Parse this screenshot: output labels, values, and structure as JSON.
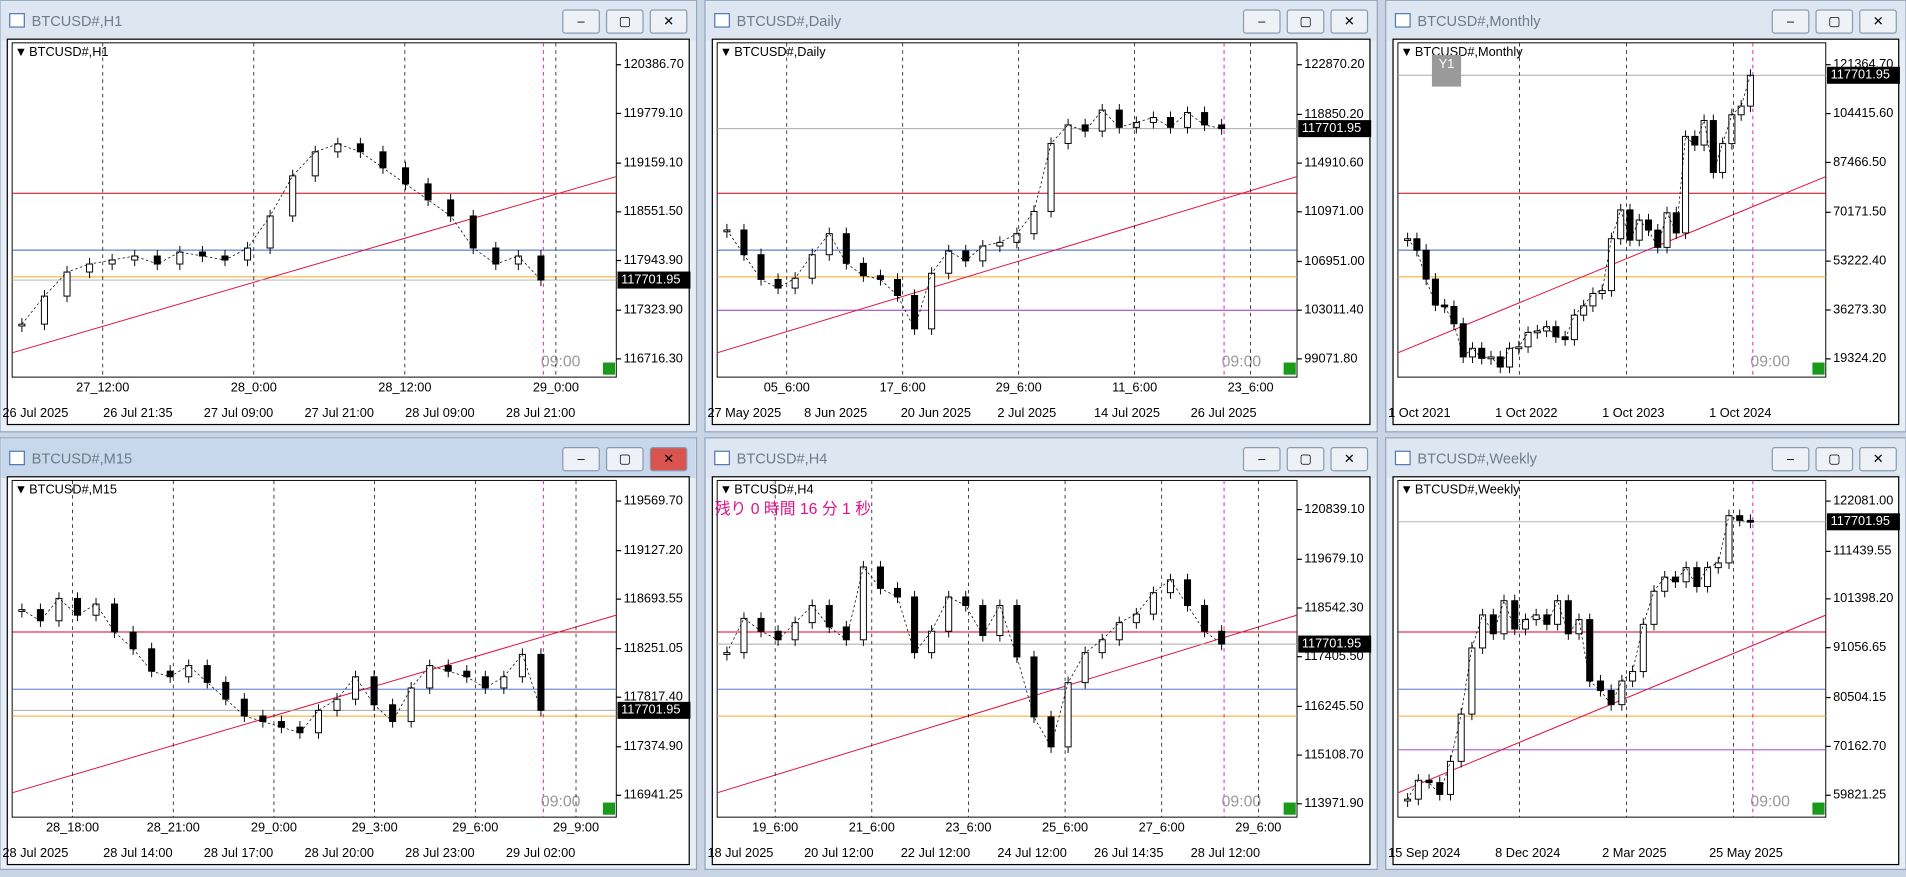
{
  "bid": "117701.95",
  "countdown": "残り 0 時間 16 分 1 秒",
  "session_label": "09:00",
  "period_button": "Y1",
  "windows": [
    {
      "title": "BTCUSD#,H1",
      "label": "BTCUSD#,H1",
      "ylim": [
        116489,
        120660
      ],
      "yticks": [
        {
          "value": 120386.7,
          "label": "120386.70"
        },
        {
          "value": 119779.1,
          "label": "119779.10"
        },
        {
          "value": 119159.1,
          "label": "119159.10"
        },
        {
          "value": 118551.5,
          "label": "118551.50"
        },
        {
          "value": 117943.9,
          "label": "117943.90"
        },
        {
          "value": 117323.9,
          "label": "117323.90"
        },
        {
          "value": 116716.3,
          "label": "116716.30"
        }
      ],
      "time_top": [
        "27_12:00",
        "28_0:00",
        "28_12:00",
        "29_0:00"
      ],
      "time_bottom": [
        "26 Jul 2025",
        "26 Jul 21:35",
        "27 Jul 09:00",
        "27 Jul 21:00",
        "28 Jul 09:00",
        "28 Jul 21:00"
      ],
      "close": [
        117150,
        117500,
        117800,
        117900,
        117950,
        118000,
        117900,
        118050,
        118000,
        117950,
        118100,
        118500,
        119000,
        119300,
        119400,
        119300,
        119100,
        118900,
        118700,
        118500,
        118100,
        117900,
        118000,
        117700
      ]
    },
    {
      "title": "BTCUSD#,Daily",
      "label": "BTCUSD#,Daily",
      "ylim": [
        97597,
        124640
      ],
      "yticks": [
        {
          "value": 122870.2,
          "label": "122870.20"
        },
        {
          "value": 118850.2,
          "label": "118850.20"
        },
        {
          "value": 114910.6,
          "label": "114910.60"
        },
        {
          "value": 110971,
          "label": "110971.00"
        },
        {
          "value": 106951,
          "label": "106951.00"
        },
        {
          "value": 103011.4,
          "label": "103011.40"
        },
        {
          "value": 99071.8,
          "label": "99071.80"
        }
      ],
      "time_top": [
        "05_6:00",
        "17_6:00",
        "29_6:00",
        "11_6:00",
        "23_6:00"
      ],
      "time_bottom": [
        "27 May 2025",
        "8 Jun 2025",
        "20 Jun 2025",
        "2 Jul 2025",
        "14 Jul 2025",
        "26 Jul 2025"
      ],
      "close": [
        109500,
        107500,
        105500,
        104800,
        105600,
        107500,
        109200,
        106800,
        105800,
        105500,
        104200,
        101500,
        106000,
        107800,
        107000,
        108200,
        108500,
        109200,
        111000,
        116500,
        118000,
        117500,
        119200,
        117800,
        118200,
        118600,
        117800,
        119000,
        118000,
        117700
      ]
    },
    {
      "title": "BTCUSD#,Monthly",
      "label": "BTCUSD#,Monthly",
      "ylim": [
        12999,
        128955
      ],
      "yticks": [
        {
          "value": 121364.7,
          "label": "121364.70"
        },
        {
          "value": 104415.6,
          "label": "104415.60"
        },
        {
          "value": 87466.5,
          "label": "87466.50"
        },
        {
          "value": 70171.5,
          "label": "70171.50"
        },
        {
          "value": 53222.4,
          "label": "53222.40"
        },
        {
          "value": 36273.3,
          "label": "36273.30"
        },
        {
          "value": 19324.2,
          "label": "19324.20"
        }
      ],
      "time_top": [],
      "time_bottom": [
        "1 Oct 2021",
        "1 Oct 2022",
        "1 Oct 2023",
        "1 Oct 2024"
      ],
      "close": [
        61000,
        57000,
        47000,
        38000,
        37500,
        31500,
        20000,
        23000,
        19500,
        20000,
        16500,
        23000,
        23500,
        28500,
        29000,
        30500,
        27000,
        26000,
        34500,
        37700,
        42000,
        43000,
        61000,
        71000,
        60500,
        67500,
        64000,
        58000,
        70000,
        63000,
        96500,
        93500,
        102000,
        84000,
        94000,
        104000,
        107000,
        117700
      ]
    },
    {
      "title": "BTCUSD#,M15",
      "label": "BTCUSD#,M15",
      "ylim": [
        116746,
        119754
      ],
      "yticks": [
        {
          "value": 119569.7,
          "label": "119569.70"
        },
        {
          "value": 119127.2,
          "label": "119127.20"
        },
        {
          "value": 118693.55,
          "label": "118693.55"
        },
        {
          "value": 118251.05,
          "label": "118251.05"
        },
        {
          "value": 117817.4,
          "label": "117817.40"
        },
        {
          "value": 117374.9,
          "label": "117374.90"
        },
        {
          "value": 116941.25,
          "label": "116941.25"
        }
      ],
      "time_top": [
        "28_18:00",
        "28_21:00",
        "29_0:00",
        "29_3:00",
        "29_6:00",
        "29_9:00"
      ],
      "time_bottom": [
        "28 Jul 2025",
        "28 Jul 14:00",
        "28 Jul 17:00",
        "28 Jul 20:00",
        "28 Jul 23:00",
        "29 Jul 02:00"
      ],
      "close": [
        118600,
        118500,
        118700,
        118550,
        118650,
        118400,
        118250,
        118050,
        118000,
        118100,
        117950,
        117800,
        117650,
        117600,
        117550,
        117500,
        117700,
        117800,
        118000,
        117750,
        117600,
        117900,
        118100,
        118050,
        118000,
        117900,
        118000,
        118200,
        117700
      ]
    },
    {
      "title": "BTCUSD#,H4",
      "label": "BTCUSD#,H4",
      "ylim": [
        113660,
        121520
      ],
      "yticks": [
        {
          "value": 120839.1,
          "label": "120839.10"
        },
        {
          "value": 119679.1,
          "label": "119679.10"
        },
        {
          "value": 118542.3,
          "label": "118542.30"
        },
        {
          "value": 117405.5,
          "label": "117405.50"
        },
        {
          "value": 116245.5,
          "label": "116245.50"
        },
        {
          "value": 115108.7,
          "label": "115108.70"
        },
        {
          "value": 113971.9,
          "label": "113971.90"
        }
      ],
      "time_top": [
        "19_6:00",
        "21_6:00",
        "23_6:00",
        "25_6:00",
        "27_6:00",
        "29_6:00"
      ],
      "time_bottom": [
        "18 Jul 2025",
        "20 Jul 12:00",
        "22 Jul 12:00",
        "24 Jul 12:00",
        "26 Jul 14:35",
        "28 Jul 12:00"
      ],
      "close": [
        117500,
        118300,
        118000,
        117800,
        118200,
        118600,
        118100,
        117800,
        119500,
        119000,
        118800,
        117500,
        118000,
        118800,
        118600,
        117900,
        118600,
        117400,
        116000,
        115300,
        116800,
        117500,
        117800,
        118200,
        118400,
        118900,
        119200,
        118600,
        118000,
        117700
      ]
    },
    {
      "title": "BTCUSD#,Weekly",
      "label": "BTCUSD#,Weekly",
      "ylim": [
        55190,
        126455
      ],
      "yticks": [
        {
          "value": 122081,
          "label": "122081.00"
        },
        {
          "value": 111439.55,
          "label": "111439.55"
        },
        {
          "value": 101398.2,
          "label": "101398.20"
        },
        {
          "value": 91056.65,
          "label": "91056.65"
        },
        {
          "value": 80504.15,
          "label": "80504.15"
        },
        {
          "value": 70162.7,
          "label": "70162.70"
        },
        {
          "value": 59821.25,
          "label": "59821.25"
        }
      ],
      "time_top": [],
      "time_bottom": [
        "15 Sep 2024",
        "8 Dec 2024",
        "2 Mar 2025",
        "25 May 2025"
      ],
      "close": [
        59000,
        63000,
        62500,
        60000,
        67000,
        77000,
        91000,
        98000,
        94000,
        101000,
        95000,
        97000,
        98000,
        96000,
        101000,
        94000,
        97000,
        84000,
        82000,
        79000,
        84000,
        86000,
        96000,
        103000,
        106000,
        105000,
        108000,
        104000,
        108000,
        109000,
        119000,
        118000,
        117700
      ]
    }
  ]
}
